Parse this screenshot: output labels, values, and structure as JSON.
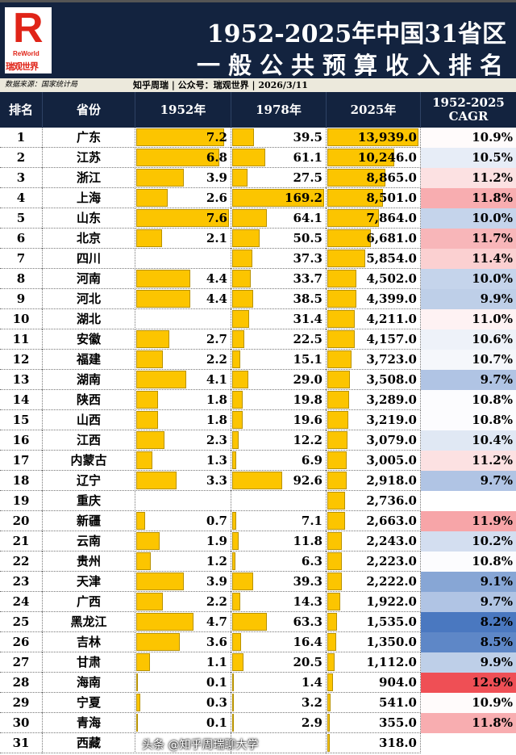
{
  "header": {
    "logo_text": "瑞观世界",
    "logo_sub": "ReWorld",
    "title_line1": "1952-2025年中国31省区",
    "title_line2": "一般公共预算收入排名",
    "source": "数据来源：国家统计局",
    "credit": "知乎周瑞 | 公众号：瑞观世界 | 2026/3/11"
  },
  "watermark": "头条 @知乎周瑞聊大学",
  "colors": {
    "navy": "#13233f",
    "bar": "#fcc500",
    "cagr_low": "#4a78c0",
    "cagr_mid": "#ffffff",
    "cagr_high": "#ef4f55"
  },
  "chart_data": {
    "type": "table",
    "title": "1952-2025年中国31省区一般公共预算收入排名",
    "columns": [
      "排名",
      "省份",
      "1952年",
      "1978年",
      "2025年",
      "1952-2025 CAGR"
    ],
    "rows": [
      [
        1,
        "广东",
        7.2,
        39.5,
        13939.0,
        "10.9%"
      ],
      [
        2,
        "江苏",
        6.8,
        61.1,
        10246.0,
        "10.5%"
      ],
      [
        3,
        "浙江",
        3.9,
        27.5,
        8865.0,
        "11.2%"
      ],
      [
        4,
        "上海",
        2.6,
        169.2,
        8501.0,
        "11.8%"
      ],
      [
        5,
        "山东",
        7.6,
        64.1,
        7864.0,
        "10.0%"
      ],
      [
        6,
        "北京",
        2.1,
        50.5,
        6681.0,
        "11.7%"
      ],
      [
        7,
        "四川",
        null,
        37.3,
        5854.0,
        "11.4%"
      ],
      [
        8,
        "河南",
        4.4,
        33.7,
        4502.0,
        "10.0%"
      ],
      [
        9,
        "河北",
        4.4,
        38.5,
        4399.0,
        "9.9%"
      ],
      [
        10,
        "湖北",
        null,
        31.4,
        4211.0,
        "11.0%"
      ],
      [
        11,
        "安徽",
        2.7,
        22.5,
        4157.0,
        "10.6%"
      ],
      [
        12,
        "福建",
        2.2,
        15.1,
        3723.0,
        "10.7%"
      ],
      [
        13,
        "湖南",
        4.1,
        29.0,
        3508.0,
        "9.7%"
      ],
      [
        14,
        "陕西",
        1.8,
        19.8,
        3289.0,
        "10.8%"
      ],
      [
        15,
        "山西",
        1.8,
        19.6,
        3219.0,
        "10.8%"
      ],
      [
        16,
        "江西",
        2.3,
        12.2,
        3079.0,
        "10.4%"
      ],
      [
        17,
        "内蒙古",
        1.3,
        6.9,
        3005.0,
        "11.2%"
      ],
      [
        18,
        "辽宁",
        3.3,
        92.6,
        2918.0,
        "9.7%"
      ],
      [
        19,
        "重庆",
        null,
        null,
        2736.0,
        ""
      ],
      [
        20,
        "新疆",
        0.7,
        7.1,
        2663.0,
        "11.9%"
      ],
      [
        21,
        "云南",
        1.9,
        11.8,
        2243.0,
        "10.2%"
      ],
      [
        22,
        "贵州",
        1.2,
        6.3,
        2223.0,
        "10.8%"
      ],
      [
        23,
        "天津",
        3.9,
        39.3,
        2222.0,
        "9.1%"
      ],
      [
        24,
        "广西",
        2.2,
        14.3,
        1922.0,
        "9.7%"
      ],
      [
        25,
        "黑龙江",
        4.7,
        63.3,
        1535.0,
        "8.2%"
      ],
      [
        26,
        "吉林",
        3.6,
        16.4,
        1350.0,
        "8.5%"
      ],
      [
        27,
        "甘肃",
        1.1,
        20.5,
        1112.0,
        "9.9%"
      ],
      [
        28,
        "海南",
        0.1,
        1.4,
        904.0,
        "12.9%"
      ],
      [
        29,
        "宁夏",
        0.3,
        3.2,
        541.0,
        "10.9%"
      ],
      [
        30,
        "青海",
        0.1,
        2.9,
        355.0,
        "11.8%"
      ],
      [
        31,
        "西藏",
        null,
        null,
        318.0,
        ""
      ]
    ]
  }
}
